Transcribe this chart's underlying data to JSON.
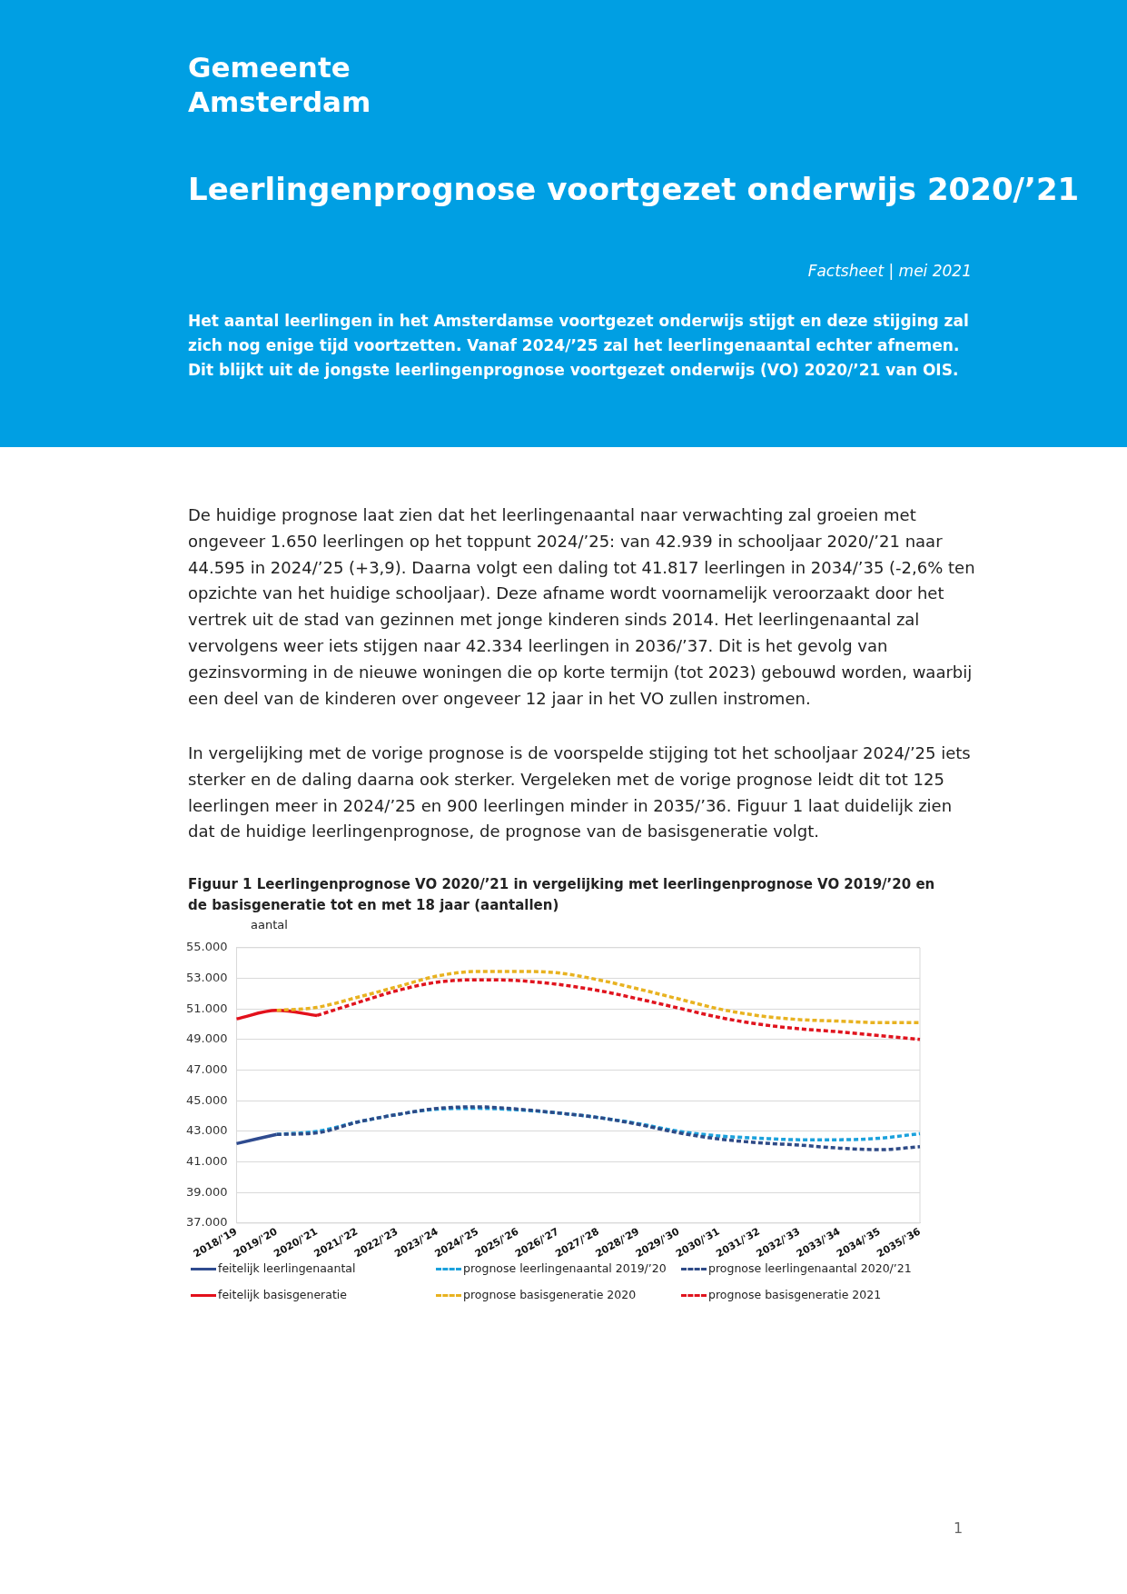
{
  "chart_data": {
    "type": "line",
    "title": "Figuur 1  Leerlingenprognose VO 2020/’21 in vergelijking met leerlingenprognose VO 2019/’20 en de basisgeneratie tot en met 18 jaar (aantallen)",
    "ylabel": "aantal",
    "categories": [
      "2018/'19",
      "2019/'20",
      "2020/'21",
      "2021/'22",
      "2022/'23",
      "2023/'24",
      "2024/'25",
      "2025/'26",
      "2026/'27",
      "2027/'28",
      "2028/'29",
      "2029/'30",
      "2030/'31",
      "2031/'32",
      "2032/'33",
      "2033/'34",
      "2034/'35",
      "2035/'36"
    ],
    "series": [
      {
        "name": "feitelijk leerlingenaantal",
        "color": "#2f4b8f",
        "line_style": "solid",
        "values": [
          42200,
          42800,
          null,
          null,
          null,
          null,
          null,
          null,
          null,
          null,
          null,
          null,
          null,
          null,
          null,
          null,
          null,
          null
        ]
      },
      {
        "name": "prognose leerlingenaantal 2019/’20",
        "color": "#1ba1dc",
        "line_style": "dashed",
        "values": [
          null,
          42800,
          43000,
          43600,
          44100,
          44450,
          44500,
          44400,
          44200,
          43900,
          43500,
          43000,
          42700,
          42550,
          42450,
          42450,
          42550,
          42850
        ]
      },
      {
        "name": "prognose leerlingenaantal 2020/’21",
        "color": "#2e4a86",
        "line_style": "dashed",
        "values": [
          null,
          42800,
          42900,
          43600,
          44100,
          44500,
          44600,
          44450,
          44200,
          43900,
          43450,
          42900,
          42500,
          42250,
          42100,
          41900,
          41800,
          42000
        ]
      },
      {
        "name": "feitelijk basisgeneratie",
        "color": "#e3101b",
        "line_style": "solid",
        "values": [
          50350,
          50900,
          50570,
          null,
          null,
          null,
          null,
          null,
          null,
          null,
          null,
          null,
          null,
          null,
          null,
          null,
          null,
          null
        ]
      },
      {
        "name": "prognose basisgeneratie 2020",
        "color": "#e8b220",
        "line_style": "dashed",
        "values": [
          null,
          50900,
          51100,
          51750,
          52450,
          53150,
          53450,
          53450,
          53350,
          52900,
          52300,
          51650,
          51000,
          50550,
          50300,
          50200,
          50100,
          50100
        ]
      },
      {
        "name": "prognose basisgeneratie 2021",
        "color": "#e0141e",
        "line_style": "dashed",
        "values": [
          null,
          null,
          50570,
          51400,
          52200,
          52750,
          52900,
          52850,
          52600,
          52200,
          51650,
          51050,
          50450,
          50000,
          49700,
          49500,
          49250,
          49000
        ]
      }
    ],
    "ylim": [
      37000,
      55000
    ],
    "yticks": [
      {
        "value": 37000,
        "label": "37.000"
      },
      {
        "value": 39000,
        "label": "39.000"
      },
      {
        "value": 41000,
        "label": "41.000"
      },
      {
        "value": 43000,
        "label": "43.000"
      },
      {
        "value": 45000,
        "label": "45.000"
      },
      {
        "value": 47000,
        "label": "47.000"
      },
      {
        "value": 49000,
        "label": "49.000"
      },
      {
        "value": 51000,
        "label": "51.000"
      },
      {
        "value": 53000,
        "label": "53.000"
      },
      {
        "value": 55000,
        "label": "55.000"
      }
    ],
    "grid": "y",
    "legend": "bottom",
    "marker": "none",
    "annotations": [
      "Gemeente Amsterdam",
      "Leerlingenprognose voortgezet onderwijs 2020/’21",
      "Factsheet | mei 2021",
      "Het aantal leerlingen in het Amsterdamse voortgezet onderwijs stijgt en deze stijging zal zich nog enige tijd voortzetten. Vanaf 2024/’25 zal het leerlingenaantal echter afnemen. Dit blijkt uit de jongste leerlingenprognose voortgezet onderwijs (VO) 2020/’21 van OIS.",
      "De huidige prognose laat zien dat het leerlingenaantal naar verwachting zal groeien met ongeveer 1.650 leerlingen op het toppunt 2024/’25: van 42.939 in schooljaar 2020/’21 naar 44.595 in 2024/’25 (+3,9). Daarna volgt een daling tot 41.817 leerlingen in 2034/’35 (-2,6% ten opzichte van het huidige schooljaar). Deze afname wordt voornamelijk veroorzaakt door het vertrek uit de stad van gezinnen met jonge kinderen sinds 2014. Het leerlingenaantal zal vervolgens weer iets stijgen naar 42.334 leerlingen in 2036/’37. Dit is het gevolg van gezinsvorming in de nieuwe woningen die op korte termijn (tot 2023) gebouwd worden, waarbij een deel van de kinderen over ongeveer 12 jaar in het VO zullen instromen.",
      "In vergelijking met de vorige prognose is de voorspelde stijging tot het schooljaar 2024/’25 iets sterker en de daling daarna ook sterker. Vergeleken met de vorige prognose leidt dit tot 125 leerlingen meer in 2024/’25 en 900 leerlingen minder in 2035/’36. Figuur 1 laat duidelijk zien dat de huidige leerlingenprognose, de prognose van de basisgeneratie volgt.",
      "1"
    ]
  }
}
